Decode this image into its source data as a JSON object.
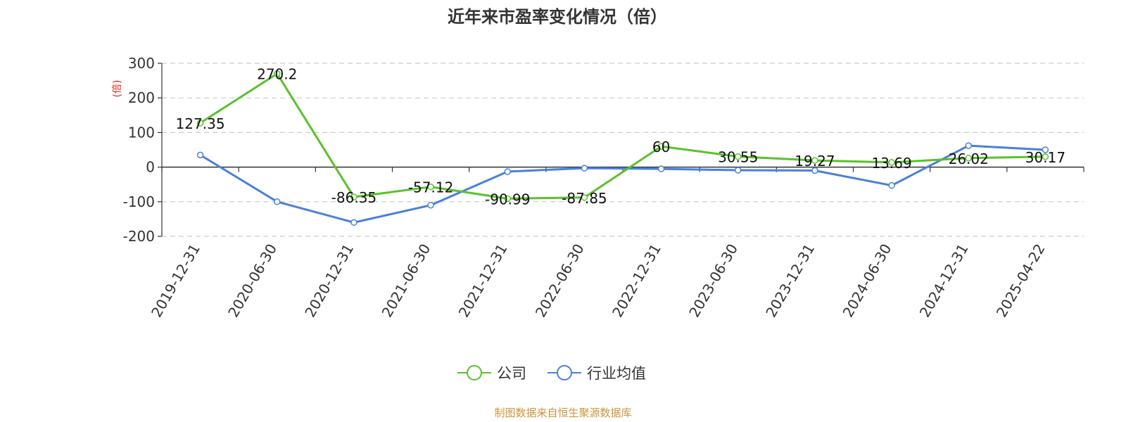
{
  "chart_data": {
    "type": "line",
    "title": "近年来市盈率变化情况（倍）",
    "ylabel": "(倍)",
    "ylim": [
      -200,
      300
    ],
    "yticks": [
      300,
      200,
      100,
      0,
      -100,
      -200
    ],
    "categories": [
      "2019-12-31",
      "2020-06-30",
      "2020-12-31",
      "2021-06-30",
      "2021-12-31",
      "2022-06-30",
      "2022-12-31",
      "2023-06-30",
      "2023-12-31",
      "2024-06-30",
      "2024-12-31",
      "2025-04-22"
    ],
    "grid": true,
    "legend_position": "bottom",
    "series": [
      {
        "name": "公司",
        "color": "#5ac12b",
        "values": [
          127.35,
          270.2,
          -86.35,
          -57.12,
          -90.99,
          -87.85,
          60,
          30.55,
          19.27,
          13.69,
          26.02,
          30.17
        ],
        "labels": [
          "127.35",
          "270.2",
          "-86.35",
          "-57.12",
          "-90.99",
          "-87.85",
          "60",
          "30.55",
          "19.27",
          "13.69",
          "26.02",
          "30.17"
        ]
      },
      {
        "name": "行业均值",
        "color": "#4a7fdc",
        "values": [
          35,
          -100,
          -160,
          -110,
          -13,
          -3,
          -5,
          -9,
          -10,
          -53,
          62,
          50
        ]
      }
    ],
    "source": "制图数据来自恒生聚源数据库",
    "source_color": "#c8963c",
    "ylabel_color": "#e02020"
  }
}
